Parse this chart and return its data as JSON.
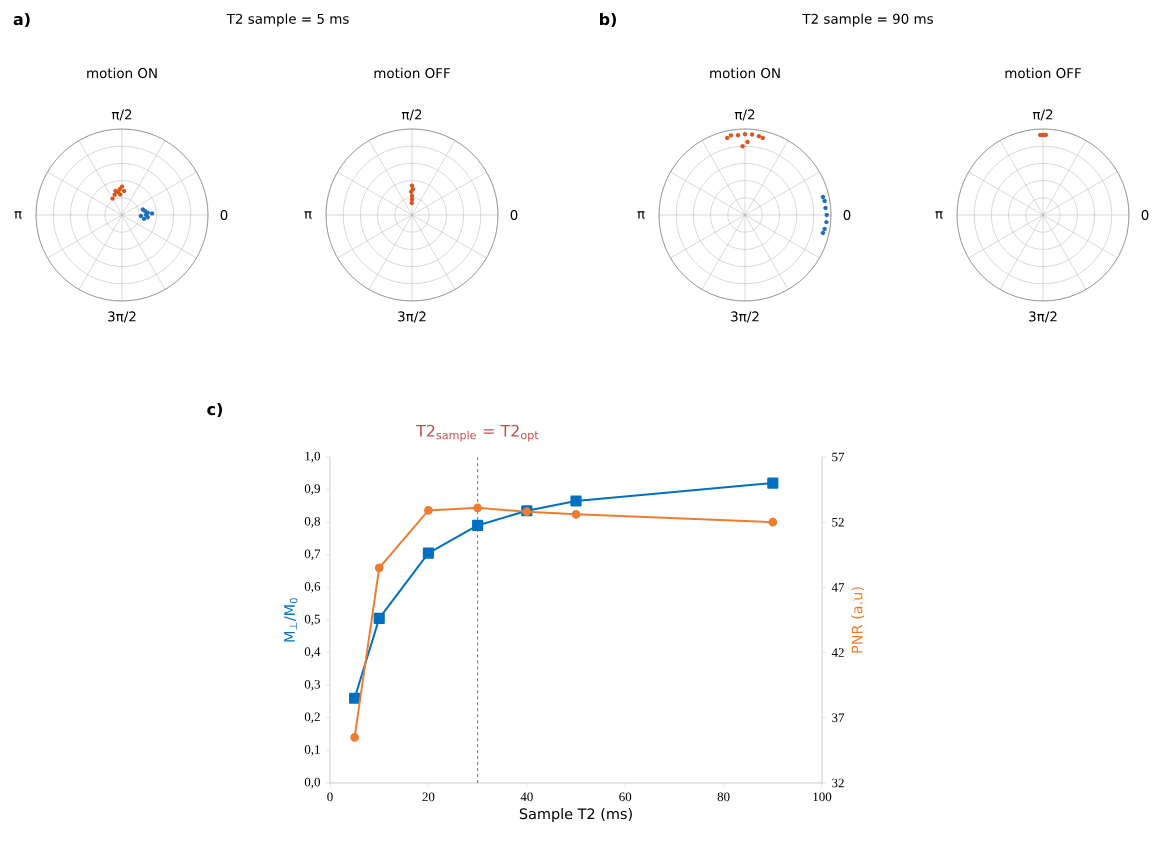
{
  "chart_data": [
    {
      "type": "other",
      "title": "motion ON",
      "annotations": [
        "a)",
        "T2 sample = 5 ms",
        "π/2",
        "π",
        "0",
        "3π/2"
      ]
    },
    {
      "type": "other",
      "title": "motion OFF",
      "annotations": [
        "π/2",
        "π",
        "0",
        "3π/2"
      ]
    },
    {
      "type": "other",
      "title": "motion ON",
      "annotations": [
        "b)",
        "T2 sample = 90 ms",
        "π/2",
        "π",
        "0",
        "3π/2"
      ]
    },
    {
      "type": "other",
      "title": "motion OFF",
      "annotations": [
        "π/2",
        "π",
        "0",
        "3π/2"
      ]
    },
    {
      "type": "line",
      "title": "c)",
      "xlabel": "Sample T2 (ms)",
      "ylabel": "M$_{⊥}$/M$_{0}$",
      "y2label": "PNR (a.u)",
      "xlim": [
        0,
        100
      ],
      "xticks": [
        0,
        20,
        40,
        60,
        80,
        100
      ],
      "ylim": [
        0,
        1
      ],
      "yticks": [
        {
          "value": 0,
          "label": "0,0"
        },
        {
          "value": 0.1,
          "label": "0,1"
        },
        {
          "value": 0.2,
          "label": "0,2"
        },
        {
          "value": 0.3,
          "label": "0,3"
        },
        {
          "value": 0.4,
          "label": "0,4"
        },
        {
          "value": 0.5,
          "label": "0,5"
        },
        {
          "value": 0.6,
          "label": "0,6"
        },
        {
          "value": 0.7,
          "label": "0,7"
        },
        {
          "value": 0.8,
          "label": "0,8"
        },
        {
          "value": 0.9,
          "label": "0,9"
        },
        {
          "value": 1,
          "label": "1,0"
        }
      ],
      "y2lim": [
        32,
        57
      ],
      "y2ticks": [
        32,
        37,
        42,
        47,
        52,
        57
      ],
      "x": [
        5,
        10,
        20,
        30,
        40,
        50,
        90
      ],
      "ref_lines": [
        {
          "axis": "x",
          "value": 30,
          "label": "T2$_{sample}$ = T2$_{opt}$",
          "color": "#c0504d",
          "line_style": "dashed"
        }
      ],
      "series": [
        {
          "color": "#0070c0",
          "marker": "square",
          "values": [
            0.26,
            0.505,
            0.705,
            0.79,
            0.835,
            0.865,
            0.92
          ]
        },
        {
          "color": "#ed7d31",
          "marker": "circle",
          "axis": "y2",
          "values": [
            35.5,
            48.5,
            52.9,
            53.1,
            52.8,
            52.6,
            52.0
          ]
        }
      ]
    }
  ]
}
